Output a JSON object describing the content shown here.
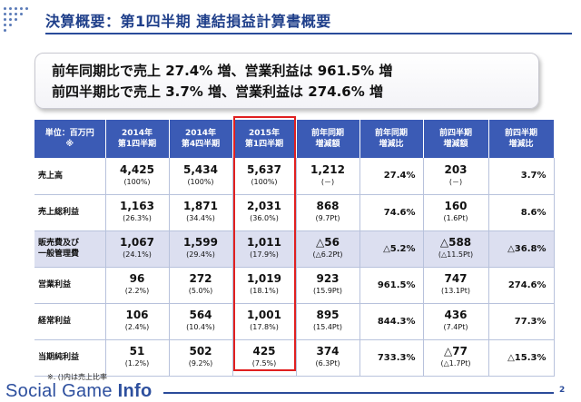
{
  "slide": {
    "title": "決算概要：第1四半期 連結損益計算書概要",
    "page_number": "2",
    "accent_color": "#3b5bb5",
    "highlight_color": "#e02020"
  },
  "summary": {
    "line1": "前年同期比で売上 27.4% 増、営業利益は 961.5% 増",
    "line2": "前四半期比で売上 3.7% 増、営業利益は 274.6% 増"
  },
  "table": {
    "headers": [
      "単位：百万円\n※",
      "2014年\n第1四半期",
      "2014年\n第4四半期",
      "2015年\n第1四半期",
      "前年同期\n増減額",
      "前年同期\n増減比",
      "前四半期\n増減額",
      "前四半期\n増減比"
    ],
    "rows": [
      {
        "label": "売上高",
        "cells": [
          {
            "v": "4,425",
            "s": "(100%)"
          },
          {
            "v": "5,434",
            "s": "(100%)"
          },
          {
            "v": "5,637",
            "s": "(100%)"
          },
          {
            "v": "1,212",
            "s": "(－)"
          },
          {
            "v": "27.4%"
          },
          {
            "v": "203",
            "s": "(－)"
          },
          {
            "v": "3.7%"
          }
        ]
      },
      {
        "label": "売上総利益",
        "cells": [
          {
            "v": "1,163",
            "s": "(26.3%)"
          },
          {
            "v": "1,871",
            "s": "(34.4%)"
          },
          {
            "v": "2,031",
            "s": "(36.0%)"
          },
          {
            "v": "868",
            "s": "(9.7Pt)"
          },
          {
            "v": "74.6%"
          },
          {
            "v": "160",
            "s": "(1.6Pt)"
          },
          {
            "v": "8.6%"
          }
        ]
      },
      {
        "label": "販売費及び\n一般管理費",
        "alt": true,
        "cells": [
          {
            "v": "1,067",
            "s": "(24.1%)"
          },
          {
            "v": "1,599",
            "s": "(29.4%)"
          },
          {
            "v": "1,011",
            "s": "(17.9%)"
          },
          {
            "v": "△56",
            "s": "(△6.2Pt)"
          },
          {
            "v": "△5.2%"
          },
          {
            "v": "△588",
            "s": "(△11.5Pt)"
          },
          {
            "v": "△36.8%"
          }
        ]
      },
      {
        "label": "営業利益",
        "cells": [
          {
            "v": "96",
            "s": "(2.2%)"
          },
          {
            "v": "272",
            "s": "(5.0%)"
          },
          {
            "v": "1,019",
            "s": "(18.1%)"
          },
          {
            "v": "923",
            "s": "(15.9Pt)"
          },
          {
            "v": "961.5%"
          },
          {
            "v": "747",
            "s": "(13.1Pt)"
          },
          {
            "v": "274.6%"
          }
        ]
      },
      {
        "label": "経常利益",
        "cells": [
          {
            "v": "106",
            "s": "(2.4%)"
          },
          {
            "v": "564",
            "s": "(10.4%)"
          },
          {
            "v": "1,001",
            "s": "(17.8%)"
          },
          {
            "v": "895",
            "s": "(15.4Pt)"
          },
          {
            "v": "844.3%"
          },
          {
            "v": "436",
            "s": "(7.4Pt)"
          },
          {
            "v": "77.3%"
          }
        ]
      },
      {
        "label": "当期純利益",
        "cells": [
          {
            "v": "51",
            "s": "(1.2%)"
          },
          {
            "v": "502",
            "s": "(9.2%)"
          },
          {
            "v": "425",
            "s": "(7.5%)"
          },
          {
            "v": "374",
            "s": "(6.3Pt)"
          },
          {
            "v": "733.3%"
          },
          {
            "v": "△77",
            "s": "(△1.7Pt)"
          },
          {
            "v": "△15.3%"
          }
        ]
      }
    ]
  },
  "footnote": "※. ()内は売上比率",
  "logo": {
    "text_light": "Social Game ",
    "text_bold": "Info"
  }
}
